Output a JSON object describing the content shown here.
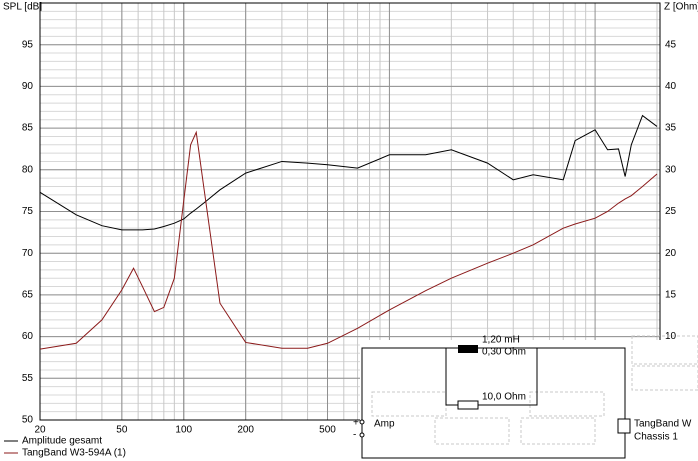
{
  "chart_data": {
    "type": "line",
    "y_label": "SPL [dB]",
    "y2_label": "Z [Ohm]",
    "x": [
      20,
      30,
      40,
      50,
      57,
      63,
      72,
      80,
      90,
      100,
      108,
      115,
      125,
      150,
      200,
      300,
      400,
      500,
      700,
      1000,
      1500,
      2000,
      3000,
      4000,
      5000,
      7000,
      8000,
      10000,
      11500,
      13000,
      14000,
      15000,
      17000,
      20000
    ],
    "series": [
      {
        "name": "Amplitude gesamt",
        "color": "#000000",
        "values": [
          77.3,
          74.6,
          73.3,
          72.8,
          72.8,
          72.8,
          72.9,
          73.2,
          73.6,
          74.1,
          74.8,
          75.3,
          76.0,
          77.6,
          79.6,
          81,
          80.8,
          80.6,
          80.2,
          81.8,
          81.8,
          82.4,
          80.8,
          78.8,
          79.4,
          78.8,
          83.5,
          84.8,
          82.4,
          82.5,
          79.2,
          83,
          86.5,
          85.2
        ]
      },
      {
        "name": "TangBand W3-594A (1)",
        "color": "#8b1a1a",
        "axis": "y2",
        "values": [
          8.5,
          9.2,
          12,
          15.6,
          18.2,
          16,
          13,
          13.5,
          17,
          26.3,
          33,
          34.5,
          28,
          14,
          9.3,
          8.6,
          8.6,
          9.2,
          11,
          13.2,
          15.5,
          17,
          18.8,
          20,
          21,
          23,
          23.5,
          24.2,
          25,
          26,
          26.5,
          26.9,
          28,
          29.5
        ]
      }
    ],
    "xlim": [
      20,
      20000
    ],
    "xscale": "log",
    "xticks": [
      20,
      50,
      100,
      200,
      500
    ],
    "ylim": [
      50,
      100
    ],
    "yticks": [
      50,
      55,
      60,
      65,
      70,
      75,
      80,
      85,
      90,
      95
    ],
    "y2lim": [
      0,
      50
    ],
    "y2ticks": [
      10,
      15,
      20,
      25,
      30,
      35,
      40,
      45
    ],
    "grid": true
  },
  "circuit": {
    "inductor": "1,20 mH",
    "inductor_r": "0,30 Ohm",
    "resistor": "10,0 Ohm",
    "source": "Amp",
    "plus": "+",
    "minus": "-",
    "driver": "TangBand W",
    "driver_id": "Chassis 1"
  }
}
